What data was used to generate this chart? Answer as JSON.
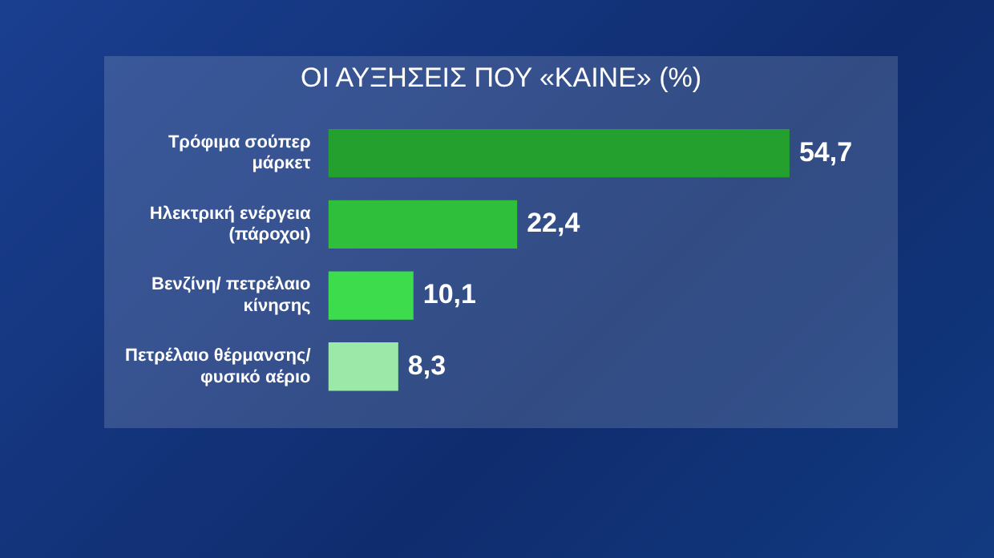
{
  "chart_data": {
    "type": "bar",
    "orientation": "horizontal",
    "title": "ΟΙ ΑΥΞΗΣΕΙΣ ΠΟΥ «ΚΑΙΝΕ» (%)",
    "categories": [
      "Τρόφιμα σούπερ μάρκετ",
      "Ηλεκτρική ενέργεια (πάροχοι)",
      "Βενζίνη/ πετρέλαιο κίνησης",
      "Πετρέλαιο θέρμανσης/ φυσικό αέριο"
    ],
    "values": [
      54.7,
      22.4,
      10.1,
      8.3
    ],
    "colors": [
      "#24a02e",
      "#2fbf3a",
      "#3ddc4c",
      "#9be8a8"
    ],
    "value_labels": [
      "54,7",
      "22,4",
      "10,1",
      "8,3"
    ],
    "grid": false,
    "legend": false
  }
}
